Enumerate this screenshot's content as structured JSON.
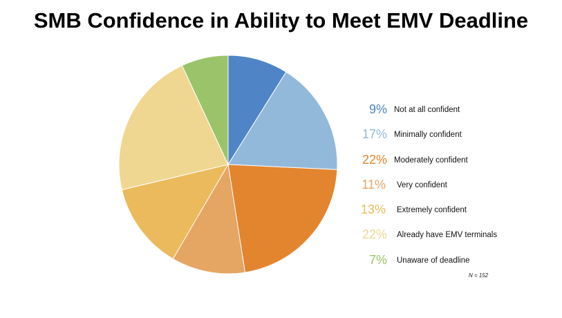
{
  "title": "SMB Confidence in Ability to Meet EMV Deadline",
  "note": "N = 152",
  "chart_data": {
    "type": "pie",
    "title": "SMB Confidence in Ability to Meet EMV Deadline",
    "legend_position": "right",
    "slices": [
      {
        "label": "Not at all confident",
        "value": 9,
        "display": "9%",
        "color": "#4f85c6"
      },
      {
        "label": "Minimally confident",
        "value": 17,
        "display": "17%",
        "color": "#92b9da"
      },
      {
        "label": "Moderately confident",
        "value": 22,
        "display": "22%",
        "color": "#e3852f"
      },
      {
        "label": "Very confident",
        "value": 11,
        "display": "11%",
        "color": "#e5a563"
      },
      {
        "label": "Extremely confident",
        "value": 13,
        "display": "13%",
        "color": "#ebba5c"
      },
      {
        "label": "Already have EMV terminals",
        "value": 22,
        "display": "22%",
        "color": "#f0d791"
      },
      {
        "label": "Unaware of deadline",
        "value": 7,
        "display": "7%",
        "color": "#9bc46a"
      }
    ]
  }
}
